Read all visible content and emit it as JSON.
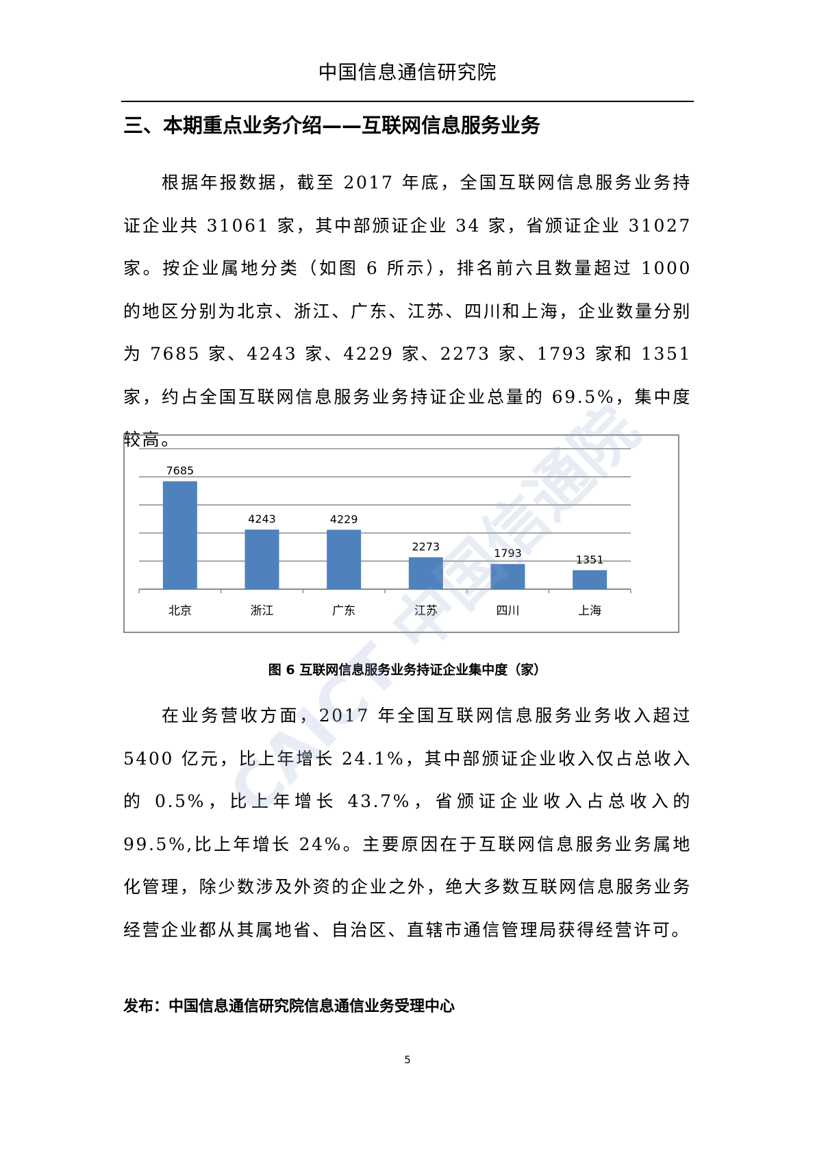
{
  "header": {
    "title": "中国信息通信研究院"
  },
  "section_title": "三、本期重点业务介绍——互联网信息服务业务",
  "paragraphs": [
    "根据年报数据，截至 2017 年底，全国互联网信息服务业务持证企业共 31061 家，其中部颁证企业 34 家，省颁证企业 31027 家。按企业属地分类（如图 6 所示），排名前六且数量超过 1000 的地区分别为北京、浙江、广东、江苏、四川和上海，企业数量分别为 7685 家、4243 家、4229 家、2273 家、1793 家和 1351 家，约占全国互联网信息服务业务持证企业总量的 69.5%，集中度较高。",
    "在业务营收方面，2017 年全国互联网信息服务业务收入超过 5400 亿元，比上年增长 24.1%，其中部颁证企业收入仅占总收入的 0.5%，比上年增长 43.7%，省颁证企业收入占总收入的 99.5%,比上年增长 24%。主要原因在于互联网信息服务业务属地化管理，除少数涉及外资的企业之外，绝大多数互联网信息服务业务经营企业都从其属地省、自治区、直辖市通信管理局获得经营许可。"
  ],
  "chart_data": {
    "type": "bar",
    "categories": [
      "北京",
      "浙江",
      "广东",
      "江苏",
      "四川",
      "上海"
    ],
    "values": [
      7685,
      4243,
      4229,
      2273,
      1793,
      1351
    ],
    "title": "",
    "xlabel": "",
    "ylabel": "",
    "ylim": [
      0,
      10000
    ],
    "grid": true,
    "gridline_step": 2000,
    "y_tick_labels_shown": false,
    "data_labels": true,
    "bar_color": "#4f81bd"
  },
  "caption": "图 6 互联网信息服务业务持证企业集中度（家）",
  "publisher": "发布：中国信息通信研究院信息通信业务受理中心",
  "page_number": "5",
  "watermark": "CAICT 中国信通院"
}
